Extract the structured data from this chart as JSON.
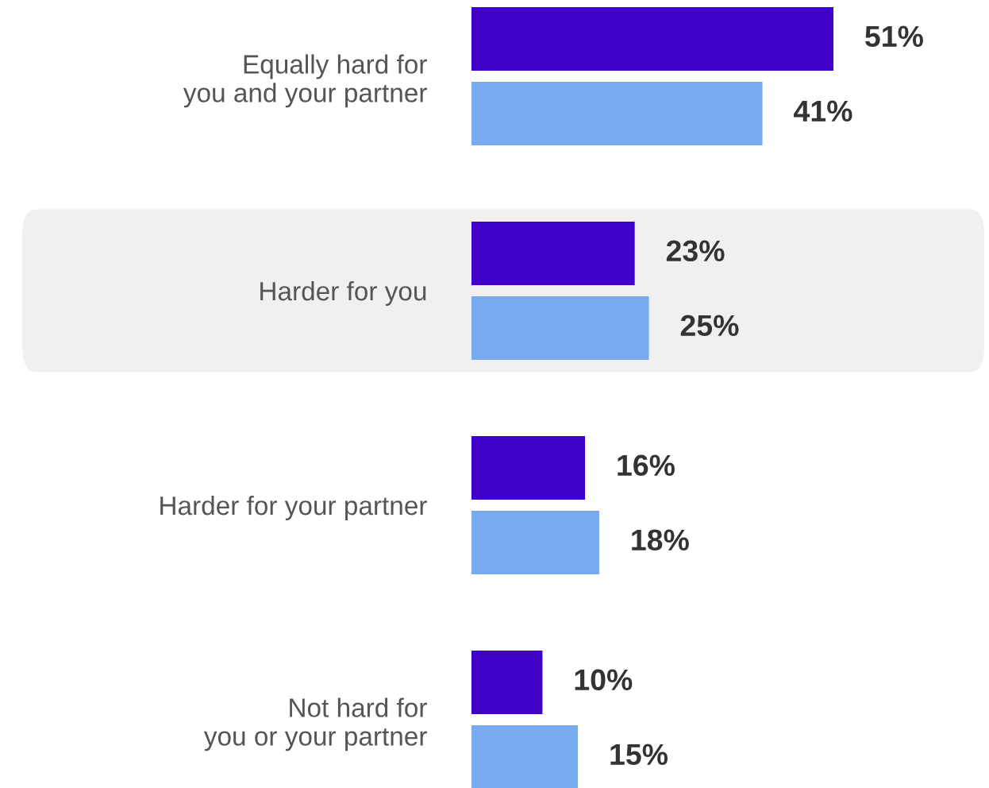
{
  "chart_data": {
    "type": "bar",
    "orientation": "horizontal",
    "categories": [
      "Equally hard for\nyou and your partner",
      "Harder for you",
      "Harder for your partner",
      "Not hard for\nyou or your partner"
    ],
    "series": [
      {
        "color": "#3f00c8",
        "values": [
          51,
          23,
          16,
          10
        ],
        "value_labels": [
          "51%",
          "23%",
          "16%",
          "10%"
        ]
      },
      {
        "color": "#78aaf0",
        "values": [
          41,
          25,
          18,
          15
        ],
        "value_labels": [
          "41%",
          "25%",
          "18%",
          "15%"
        ]
      }
    ],
    "bands": [
      {
        "axis": "y",
        "from": "Harder for you",
        "to": "Harder for you",
        "color": "#f0f0f0"
      }
    ],
    "grid": false,
    "legend": false,
    "tick_labels": "y"
  }
}
